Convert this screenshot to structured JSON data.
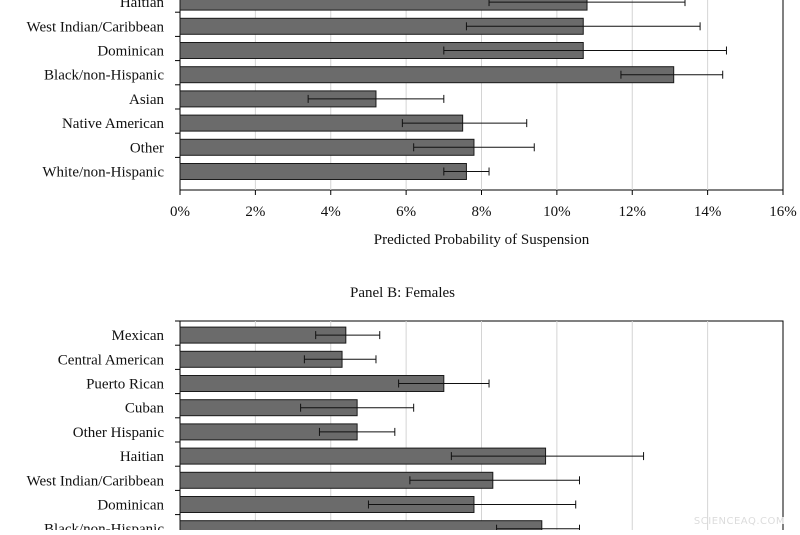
{
  "watermark": "SCIENCEAQ.COM",
  "colors": {
    "bar_fill": "#6b6b6b",
    "bar_stroke": "#1a1a1a",
    "gridline": "#d4d4d4",
    "axis": "#000000"
  },
  "chart_data": [
    {
      "type": "bar",
      "orientation": "horizontal",
      "title": "",
      "xlabel": "Predicted Probability of Suspension",
      "ylabel": "",
      "xlim": [
        0,
        16
      ],
      "x_unit": "%",
      "x_ticks": [
        "0%",
        "2%",
        "4%",
        "6%",
        "8%",
        "10%",
        "12%",
        "14%",
        "16%"
      ],
      "grid": "vertical",
      "categories": [
        "Haitian",
        "West Indian/Caribbean",
        "Dominican",
        "Black/non-Hispanic",
        "Asian",
        "Native American",
        "Other",
        "White/non-Hispanic"
      ],
      "values": [
        10.8,
        10.7,
        10.7,
        13.1,
        5.2,
        7.5,
        7.8,
        7.6
      ],
      "error_low": [
        8.2,
        7.6,
        7.0,
        11.7,
        3.4,
        5.9,
        6.2,
        7.0
      ],
      "error_high": [
        13.4,
        13.8,
        14.5,
        14.4,
        7.0,
        9.2,
        9.4,
        8.2
      ]
    },
    {
      "type": "bar",
      "orientation": "horizontal",
      "title": "Panel B: Females",
      "xlabel": "",
      "ylabel": "",
      "xlim": [
        0,
        16
      ],
      "x_unit": "%",
      "grid": "vertical",
      "categories": [
        "Mexican",
        "Central American",
        "Puerto Rican",
        "Cuban",
        "Other Hispanic",
        "Haitian",
        "West Indian/Caribbean",
        "Dominican",
        "Black/non-Hispanic"
      ],
      "values": [
        4.4,
        4.3,
        7.0,
        4.7,
        4.7,
        9.7,
        8.3,
        7.8,
        9.6
      ],
      "error_low": [
        3.6,
        3.3,
        5.8,
        3.2,
        3.7,
        7.2,
        6.1,
        5.0,
        8.4
      ],
      "error_high": [
        5.3,
        5.2,
        8.2,
        6.2,
        5.7,
        12.3,
        10.6,
        10.5,
        10.6
      ]
    }
  ]
}
